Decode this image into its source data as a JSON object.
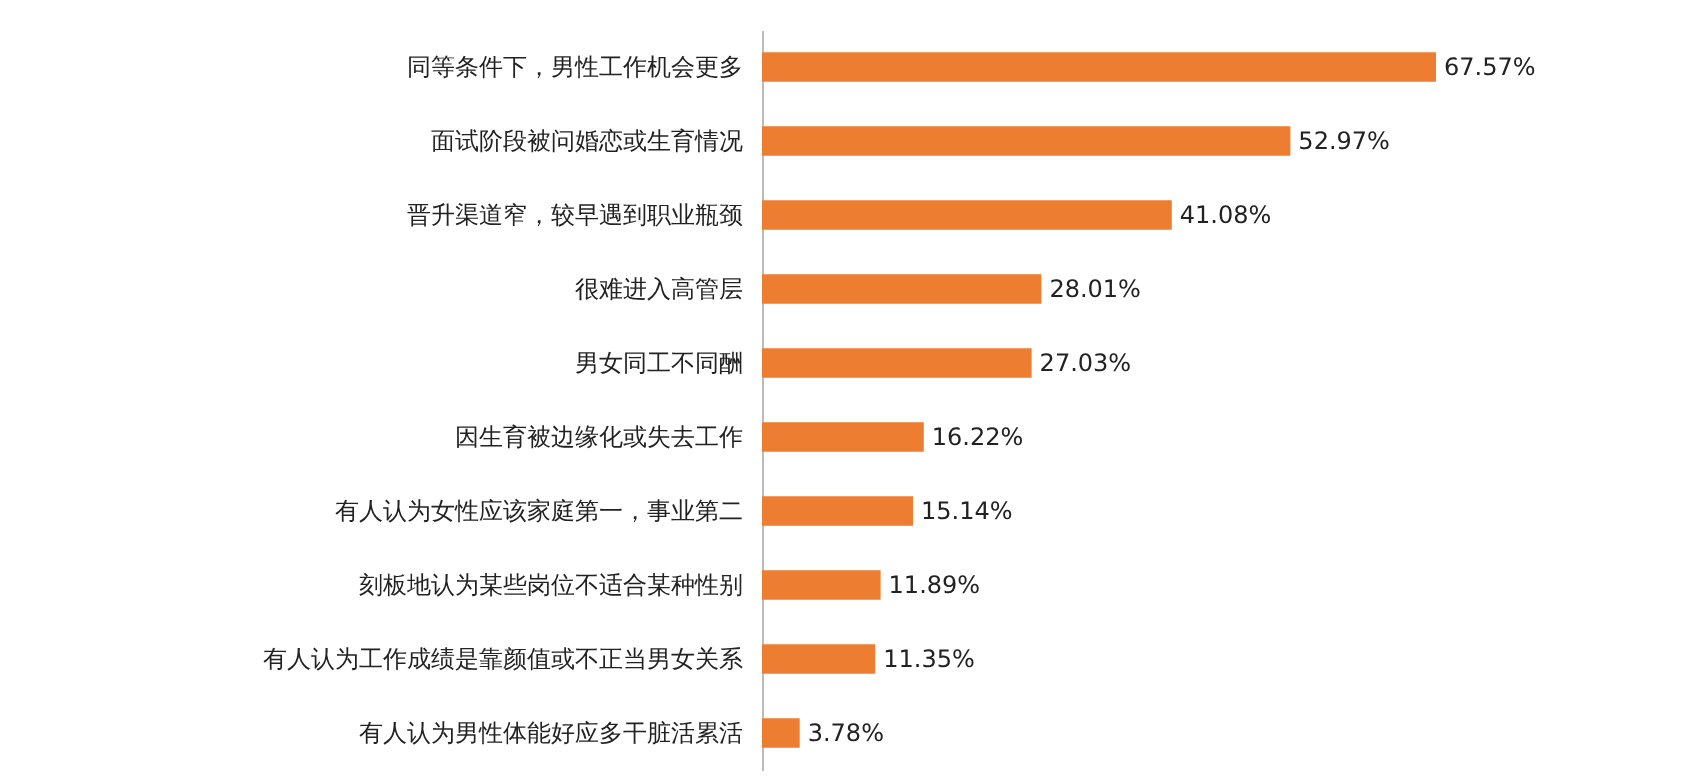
{
  "chart_data": {
    "type": "bar",
    "orientation": "horizontal",
    "color": "#ed7d31",
    "categories": [
      "同等条件下，男性工作机会更多",
      "面试阶段被问婚恋或生育情况",
      "晋升渠道窄，较早遇到职业瓶颈",
      "很难进入高管层",
      "男女同工不同酬",
      "因生育被边缘化或失去工作",
      "有人认为女性应该家庭第一，事业第二",
      "刻板地认为某些岗位不适合某种性别",
      "有人认为工作成绩是靠颜值或不正当男女关系",
      "有人认为男性体能好应多干脏活累活"
    ],
    "values": [
      67.57,
      52.97,
      41.08,
      28.01,
      27.03,
      16.22,
      15.14,
      11.89,
      11.35,
      3.78
    ],
    "value_labels": [
      "67.57%",
      "52.97%",
      "41.08%",
      "28.01%",
      "27.03%",
      "16.22%",
      "15.14%",
      "11.89%",
      "11.35%",
      "3.78%"
    ]
  }
}
